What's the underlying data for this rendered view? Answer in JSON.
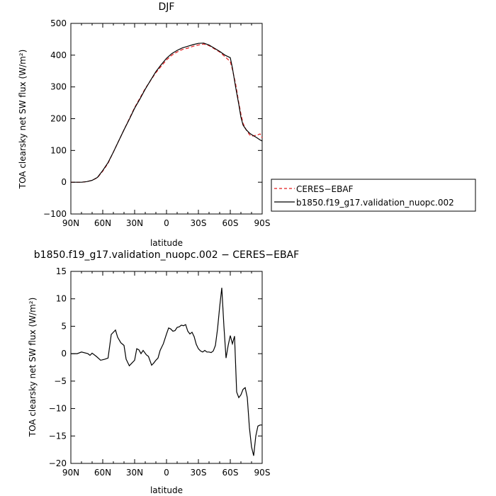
{
  "chart_data": [
    {
      "type": "line",
      "title": "DJF",
      "xlabel": "latitude",
      "ylabel": "TOA clearsky net SW flux (W/m²)",
      "ylim": [
        -100,
        500
      ],
      "yticks": [
        "500",
        "400",
        "300",
        "200",
        "100",
        "0",
        "−100"
      ],
      "xticks": [
        "90N",
        "60N",
        "30N",
        "0",
        "30S",
        "60S",
        "90S"
      ],
      "xlim": [
        90,
        -90
      ],
      "legend_position": "right",
      "x": [
        90,
        80,
        75,
        70,
        65,
        60,
        55,
        50,
        45,
        40,
        35,
        30,
        25,
        20,
        15,
        10,
        5,
        0,
        -5,
        -10,
        -15,
        -20,
        -25,
        -30,
        -35,
        -40,
        -45,
        -50,
        -55,
        -60,
        -62,
        -65,
        -68,
        -70,
        -72,
        -75,
        -78,
        -80,
        -85,
        -88,
        -90
      ],
      "series": [
        {
          "name": "CERES−EBAF",
          "color": "#e41a1c",
          "dash": "dashed",
          "values": [
            0,
            0,
            2,
            6,
            14,
            35,
            60,
            95,
            130,
            165,
            200,
            235,
            265,
            295,
            320,
            345,
            365,
            385,
            400,
            410,
            418,
            422,
            428,
            432,
            435,
            430,
            420,
            410,
            395,
            380,
            355,
            310,
            250,
            215,
            185,
            165,
            150,
            145,
            148,
            152,
            140
          ]
        },
        {
          "name": "b1850.f19_g17.validation_nuopc.002",
          "color": "#000000",
          "dash": "solid",
          "values": [
            0,
            0,
            2,
            6,
            15,
            37,
            62,
            95,
            130,
            165,
            198,
            233,
            262,
            293,
            321,
            348,
            370,
            390,
            405,
            415,
            423,
            428,
            433,
            437,
            438,
            432,
            422,
            412,
            400,
            392,
            360,
            300,
            245,
            205,
            180,
            165,
            155,
            150,
            140,
            133,
            130
          ]
        }
      ]
    },
    {
      "type": "line",
      "title": "b1850.f19_g17.validation_nuopc.002 − CERES−EBAF",
      "xlabel": "latitude",
      "ylabel": "TOA clearsky net SW flux (W/m²)",
      "ylim": [
        -20,
        15
      ],
      "yticks": [
        "15",
        "10",
        "5",
        "0",
        "−5",
        "−10",
        "−15",
        "−20"
      ],
      "xticks": [
        "90N",
        "60N",
        "30N",
        "0",
        "30S",
        "60S",
        "90S"
      ],
      "xlim": [
        90,
        -90
      ],
      "series": [
        {
          "color": "#000000",
          "x": [
            90,
            84,
            80,
            74,
            72,
            70,
            66,
            62,
            58,
            55,
            52,
            48,
            46,
            43,
            40,
            38,
            35,
            33,
            30,
            28,
            26,
            24,
            22,
            19,
            17,
            14,
            12,
            10,
            8,
            6,
            3,
            0,
            -2,
            -4,
            -6,
            -8,
            -10,
            -12,
            -14,
            -16,
            -18,
            -20,
            -22,
            -24,
            -26,
            -28,
            -30,
            -32,
            -34,
            -36,
            -38,
            -40,
            -42,
            -44,
            -46,
            -48,
            -50,
            -52,
            -54,
            -56,
            -58,
            -60,
            -62,
            -64,
            -66,
            -68,
            -70,
            -72,
            -74,
            -76,
            -78,
            -80,
            -82,
            -84,
            -86,
            -88,
            -90
          ],
          "values": [
            0,
            0,
            0.3,
            0,
            -0.3,
            0.1,
            -0.5,
            -1.2,
            -1.0,
            -0.8,
            3.5,
            4.3,
            3.0,
            2.0,
            1.5,
            -1.0,
            -2.2,
            -1.8,
            -1.2,
            0.9,
            0.7,
            0,
            0.6,
            -0.2,
            -0.5,
            -2.1,
            -1.7,
            -1.2,
            -0.8,
            0.6,
            1.8,
            3.6,
            4.7,
            4.5,
            4.1,
            4.2,
            4.8,
            4.9,
            5.2,
            5.1,
            5.3,
            4.1,
            3.6,
            3.9,
            3.1,
            1.7,
            0.9,
            0.5,
            0.3,
            0.6,
            0.3,
            0.3,
            0.2,
            0.5,
            1.5,
            4.5,
            8.5,
            12.0,
            5.0,
            -0.8,
            1.5,
            3.3,
            1.8,
            3.2,
            -7.0,
            -8.0,
            -7.5,
            -6.5,
            -6.2,
            -8.0,
            -13.5,
            -17.0,
            -18.6,
            -15.0,
            -13.2,
            -13.0,
            -13.0
          ]
        }
      ]
    }
  ]
}
